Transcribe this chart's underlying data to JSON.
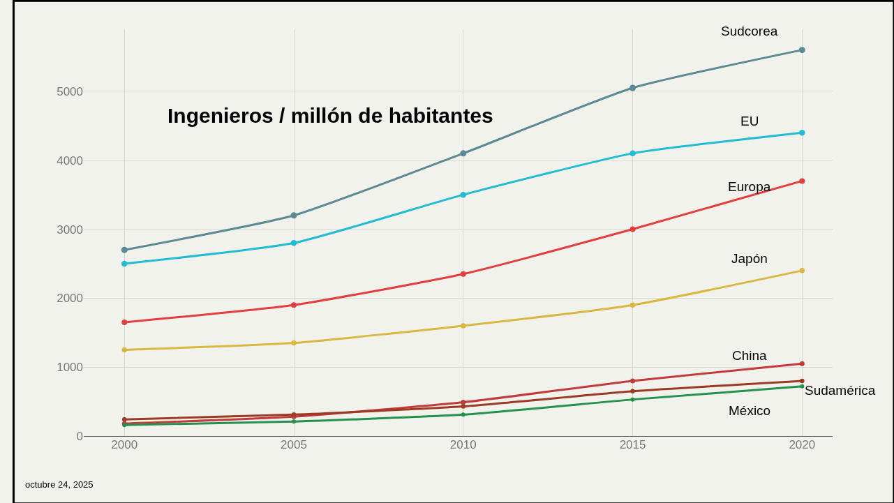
{
  "chart_data": {
    "type": "line",
    "title": "Ingenieros / millón de habitantes",
    "x": [
      2000,
      2005,
      2010,
      2015,
      2020
    ],
    "series": [
      {
        "name": "Sudcorea",
        "color": "#5b8a94",
        "values": [
          2700,
          3200,
          4100,
          5050,
          5600
        ]
      },
      {
        "name": "EU",
        "color": "#1fbcd2",
        "values": [
          2500,
          2800,
          3500,
          4100,
          4400
        ]
      },
      {
        "name": "Europa",
        "color": "#e23e3e",
        "values": [
          1650,
          1900,
          2350,
          3000,
          3700
        ]
      },
      {
        "name": "Japón",
        "color": "#d9b842",
        "values": [
          1250,
          1350,
          1600,
          1900,
          2400
        ]
      },
      {
        "name": "China",
        "color": "#c23b3b",
        "values": [
          180,
          280,
          490,
          800,
          1050
        ]
      },
      {
        "name": "Sudamérica",
        "color": "#9c3a22",
        "values": [
          240,
          310,
          430,
          650,
          800
        ]
      },
      {
        "name": "México",
        "color": "#24914e",
        "values": [
          160,
          210,
          310,
          530,
          720
        ]
      }
    ],
    "xlim": [
      1998.8,
      2020.9
    ],
    "ylim": [
      0,
      5900
    ],
    "xticks": [
      2000,
      2005,
      2010,
      2015,
      2020
    ],
    "yticks": [
      0,
      1000,
      2000,
      3000,
      4000,
      5000
    ],
    "grid": true,
    "marker": "circle",
    "line_style": "solid",
    "legend": false,
    "annotations": [
      "octubre 24, 2025"
    ]
  }
}
